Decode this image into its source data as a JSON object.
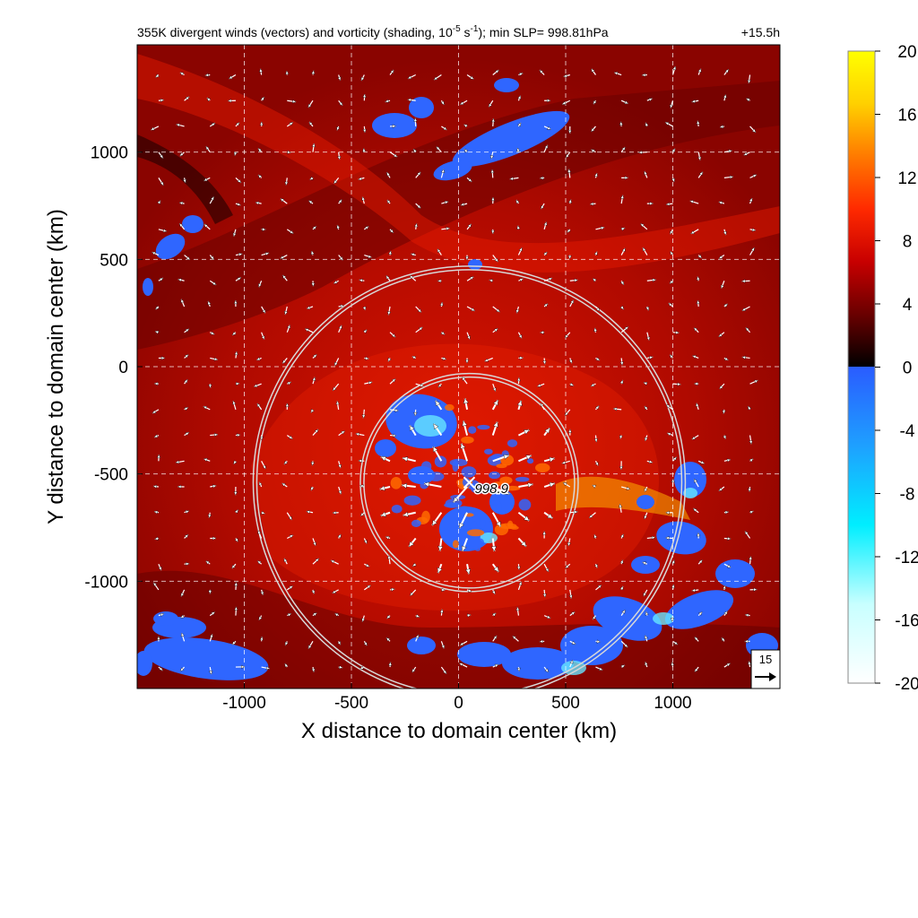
{
  "chart_data": {
    "type": "heatmap",
    "title": "355K divergent winds (vectors) and vorticity (shading, 10",
    "title_sup1": "-5",
    "title_mid": " s",
    "title_sup2": "-1",
    "title_end": "); min SLP= 998.81hPa",
    "forecast_time": "+15.5h",
    "xlabel": "X distance to domain center (km)",
    "ylabel": "Y distance to domain center (km)",
    "xlim": [
      -1500,
      1500
    ],
    "ylim": [
      -1500,
      1500
    ],
    "xticks": [
      -1000,
      -500,
      0,
      500,
      1000
    ],
    "xtick_labels": [
      "-1000",
      "-500",
      "0",
      "500",
      "1000"
    ],
    "yticks": [
      1000,
      500,
      0,
      -500,
      -1000
    ],
    "ytick_labels": [
      "1000",
      "500",
      "0",
      "-500",
      "-1000"
    ],
    "grid": true,
    "colorbar": {
      "min": -20,
      "max": 20,
      "ticks": [
        20,
        16,
        12,
        8,
        4,
        0,
        -4,
        -8,
        -12,
        -16,
        -20
      ],
      "tick_labels": [
        "20",
        "16",
        "12",
        "8",
        "4",
        "0",
        "-4",
        "-8",
        "-12",
        "-16",
        "-20"
      ],
      "positive_colors": [
        "#000000",
        "#6a0000",
        "#c80000",
        "#ff2a00",
        "#ff7a00",
        "#ffd000",
        "#ffff00"
      ],
      "negative_colors": [
        "#ffffff",
        "#c8ffff",
        "#00eeff",
        "#1ea0ff",
        "#2a5cff"
      ]
    },
    "storm_center": {
      "x": 50,
      "y": -540,
      "label": "998.9"
    },
    "range_rings_km": [
      500,
      1000
    ],
    "reference_vector": {
      "label": "15",
      "magnitude": 15
    },
    "colors": {
      "background": "#ffffff",
      "ring": "#d8d8d8",
      "grid": "#ffffff",
      "vector": "#ffffff"
    }
  }
}
